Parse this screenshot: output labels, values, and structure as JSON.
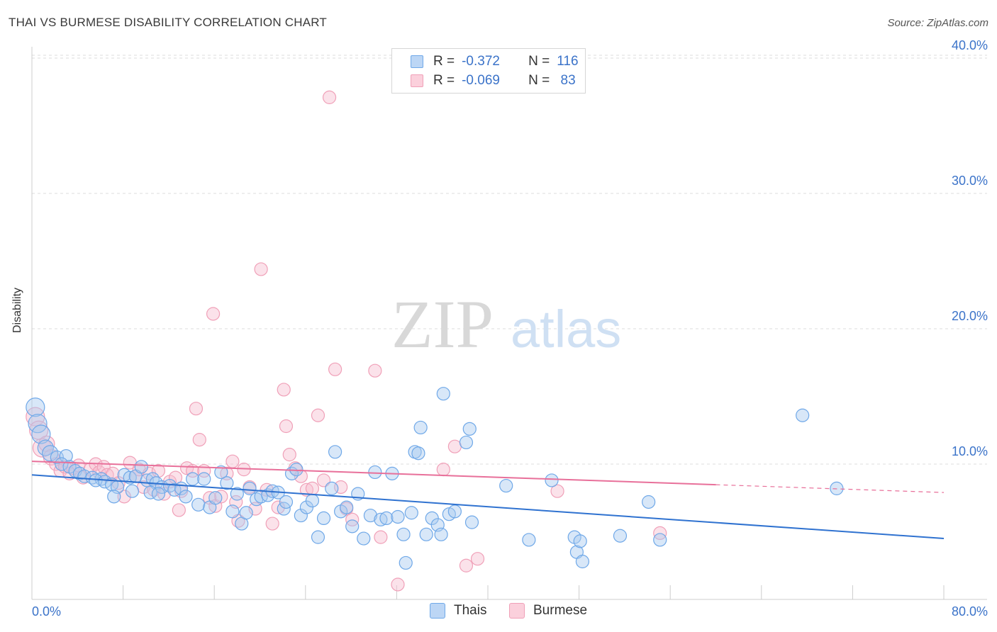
{
  "title": "THAI VS BURMESE DISABILITY CORRELATION CHART",
  "source": "Source: ZipAtlas.com",
  "watermark": {
    "zip": "ZIP",
    "atlas": "atlas"
  },
  "legend_stats": [
    {
      "r_label": "R =",
      "r_value": "-0.372",
      "n_label": "N =",
      "n_value": "116",
      "color": "#6fa8e8",
      "fill": "#bcd6f5"
    },
    {
      "r_label": "R =",
      "r_value": "-0.069",
      "n_label": "N =",
      "n_value": " 83",
      "color": "#f0a0b8",
      "fill": "#fbd0dc"
    }
  ],
  "legend": {
    "thais": "Thais",
    "burmese": "Burmese"
  },
  "colors": {
    "thais_stroke": "#6fa8e8",
    "thais_fill": "#a9c9f0",
    "thais_line": "#2f72d0",
    "burmese_stroke": "#f0a0b8",
    "burmese_fill": "#f7bfd0",
    "burmese_line": "#e8709a",
    "axis_label": "#3b73c9",
    "grid": "#dddddd"
  },
  "chart_data": {
    "type": "scatter",
    "title": "THAI VS BURMESE DISABILITY CORRELATION CHART",
    "xlabel": "",
    "ylabel": "Disability",
    "xlim": [
      0,
      80
    ],
    "ylim": [
      0,
      40
    ],
    "x_tick_labels": [
      "0.0%",
      "80.0%"
    ],
    "y_ticks": [
      10,
      20,
      30,
      40
    ],
    "y_tick_labels": [
      "10.0%",
      "20.0%",
      "30.0%",
      "40.0%"
    ],
    "grid": true,
    "series": [
      {
        "name": "Thais",
        "trend": {
          "x": [
            0,
            80
          ],
          "y": [
            9.2,
            4.5
          ],
          "solid_to": 80
        },
        "points": [
          [
            0.3,
            14.2
          ],
          [
            0.5,
            13.0
          ],
          [
            0.8,
            12.2
          ],
          [
            1.2,
            11.2
          ],
          [
            1.6,
            10.8
          ],
          [
            2.2,
            10.5
          ],
          [
            3.0,
            10.6
          ],
          [
            2.6,
            10.0
          ],
          [
            3.3,
            9.8
          ],
          [
            3.8,
            9.5
          ],
          [
            4.2,
            9.3
          ],
          [
            4.6,
            9.1
          ],
          [
            5.3,
            9.0
          ],
          [
            6.1,
            8.9
          ],
          [
            5.6,
            8.8
          ],
          [
            6.4,
            8.7
          ],
          [
            7.0,
            8.5
          ],
          [
            7.5,
            8.3
          ],
          [
            7.2,
            7.6
          ],
          [
            8.1,
            9.2
          ],
          [
            8.6,
            9.0
          ],
          [
            9.1,
            9.1
          ],
          [
            9.6,
            9.8
          ],
          [
            8.8,
            8.0
          ],
          [
            10.1,
            8.8
          ],
          [
            10.6,
            8.9
          ],
          [
            10.9,
            8.6
          ],
          [
            11.4,
            8.3
          ],
          [
            10.4,
            7.9
          ],
          [
            11.1,
            7.8
          ],
          [
            12.1,
            8.4
          ],
          [
            12.5,
            8.1
          ],
          [
            13.1,
            8.2
          ],
          [
            13.5,
            7.6
          ],
          [
            14.1,
            8.9
          ],
          [
            14.6,
            7.0
          ],
          [
            15.1,
            8.9
          ],
          [
            15.6,
            6.8
          ],
          [
            16.1,
            7.5
          ],
          [
            16.6,
            9.4
          ],
          [
            17.1,
            8.6
          ],
          [
            17.6,
            6.5
          ],
          [
            18.0,
            7.8
          ],
          [
            18.4,
            5.6
          ],
          [
            18.8,
            6.4
          ],
          [
            19.1,
            8.2
          ],
          [
            19.7,
            7.4
          ],
          [
            20.1,
            7.6
          ],
          [
            20.7,
            7.7
          ],
          [
            21.1,
            8.0
          ],
          [
            21.6,
            7.9
          ],
          [
            22.1,
            6.7
          ],
          [
            22.3,
            7.2
          ],
          [
            22.8,
            9.3
          ],
          [
            23.2,
            9.6
          ],
          [
            23.6,
            6.2
          ],
          [
            24.1,
            6.8
          ],
          [
            24.6,
            7.3
          ],
          [
            25.1,
            4.6
          ],
          [
            25.6,
            6.0
          ],
          [
            26.3,
            8.2
          ],
          [
            26.6,
            10.9
          ],
          [
            27.1,
            6.5
          ],
          [
            27.6,
            6.8
          ],
          [
            28.1,
            5.4
          ],
          [
            28.6,
            7.8
          ],
          [
            29.1,
            4.5
          ],
          [
            29.7,
            6.2
          ],
          [
            30.1,
            9.4
          ],
          [
            30.6,
            5.9
          ],
          [
            31.1,
            6.0
          ],
          [
            31.6,
            9.3
          ],
          [
            32.1,
            6.1
          ],
          [
            32.6,
            4.8
          ],
          [
            32.8,
            2.7
          ],
          [
            33.3,
            6.4
          ],
          [
            33.6,
            10.9
          ],
          [
            33.9,
            10.8
          ],
          [
            34.1,
            12.7
          ],
          [
            34.6,
            4.8
          ],
          [
            35.1,
            6.0
          ],
          [
            35.6,
            5.5
          ],
          [
            35.9,
            4.8
          ],
          [
            36.1,
            15.2
          ],
          [
            36.6,
            6.3
          ],
          [
            37.1,
            6.5
          ],
          [
            38.1,
            11.6
          ],
          [
            38.4,
            12.6
          ],
          [
            38.6,
            5.7
          ],
          [
            41.6,
            8.4
          ],
          [
            43.6,
            4.4
          ],
          [
            45.6,
            8.8
          ],
          [
            47.6,
            4.6
          ],
          [
            47.8,
            3.5
          ],
          [
            48.1,
            4.3
          ],
          [
            48.3,
            2.8
          ],
          [
            51.6,
            4.7
          ],
          [
            54.1,
            7.2
          ],
          [
            55.1,
            4.4
          ],
          [
            67.6,
            13.6
          ],
          [
            70.6,
            8.2
          ]
        ]
      },
      {
        "name": "Burmese",
        "trend": {
          "x": [
            0,
            80
          ],
          "y": [
            10.2,
            7.9
          ],
          "solid_to": 60
        },
        "points": [
          [
            0.3,
            13.5
          ],
          [
            0.6,
            12.5
          ],
          [
            0.9,
            11.2
          ],
          [
            1.3,
            11.5
          ],
          [
            1.7,
            10.5
          ],
          [
            2.1,
            10.0
          ],
          [
            2.5,
            9.5
          ],
          [
            2.9,
            9.8
          ],
          [
            3.3,
            9.3
          ],
          [
            3.6,
            9.7
          ],
          [
            4.1,
            9.9
          ],
          [
            4.5,
            9.0
          ],
          [
            5.1,
            9.6
          ],
          [
            5.6,
            10.0
          ],
          [
            5.9,
            9.4
          ],
          [
            6.3,
            9.8
          ],
          [
            6.6,
            9.2
          ],
          [
            7.1,
            9.3
          ],
          [
            7.6,
            8.6
          ],
          [
            8.1,
            7.6
          ],
          [
            8.6,
            10.1
          ],
          [
            9.1,
            9.1
          ],
          [
            9.4,
            9.6
          ],
          [
            9.8,
            8.3
          ],
          [
            10.3,
            9.3
          ],
          [
            10.7,
            8.1
          ],
          [
            11.1,
            9.5
          ],
          [
            11.6,
            7.8
          ],
          [
            12.1,
            8.7
          ],
          [
            12.6,
            9.0
          ],
          [
            12.9,
            6.6
          ],
          [
            13.1,
            8.0
          ],
          [
            13.6,
            9.7
          ],
          [
            14.1,
            9.5
          ],
          [
            14.4,
            14.1
          ],
          [
            14.7,
            11.8
          ],
          [
            15.1,
            9.5
          ],
          [
            15.6,
            7.5
          ],
          [
            15.9,
            21.1
          ],
          [
            16.1,
            6.9
          ],
          [
            16.6,
            7.6
          ],
          [
            17.1,
            9.3
          ],
          [
            17.6,
            10.2
          ],
          [
            17.9,
            7.2
          ],
          [
            18.1,
            5.8
          ],
          [
            18.6,
            9.6
          ],
          [
            19.1,
            8.3
          ],
          [
            19.6,
            6.7
          ],
          [
            20.1,
            24.4
          ],
          [
            20.6,
            8.1
          ],
          [
            21.1,
            5.6
          ],
          [
            21.6,
            6.8
          ],
          [
            22.1,
            15.5
          ],
          [
            22.3,
            12.8
          ],
          [
            22.6,
            10.7
          ],
          [
            23.1,
            9.7
          ],
          [
            23.6,
            9.1
          ],
          [
            24.1,
            8.1
          ],
          [
            24.6,
            8.2
          ],
          [
            25.1,
            13.6
          ],
          [
            25.6,
            8.8
          ],
          [
            26.1,
            37.1
          ],
          [
            26.6,
            17.0
          ],
          [
            27.1,
            8.3
          ],
          [
            27.6,
            6.7
          ],
          [
            28.1,
            5.9
          ],
          [
            30.1,
            16.9
          ],
          [
            30.6,
            4.6
          ],
          [
            32.1,
            1.1
          ],
          [
            36.1,
            9.6
          ],
          [
            38.1,
            2.5
          ],
          [
            39.1,
            3.0
          ],
          [
            46.1,
            8.0
          ],
          [
            55.1,
            4.9
          ],
          [
            37.1,
            11.3
          ]
        ]
      }
    ]
  }
}
